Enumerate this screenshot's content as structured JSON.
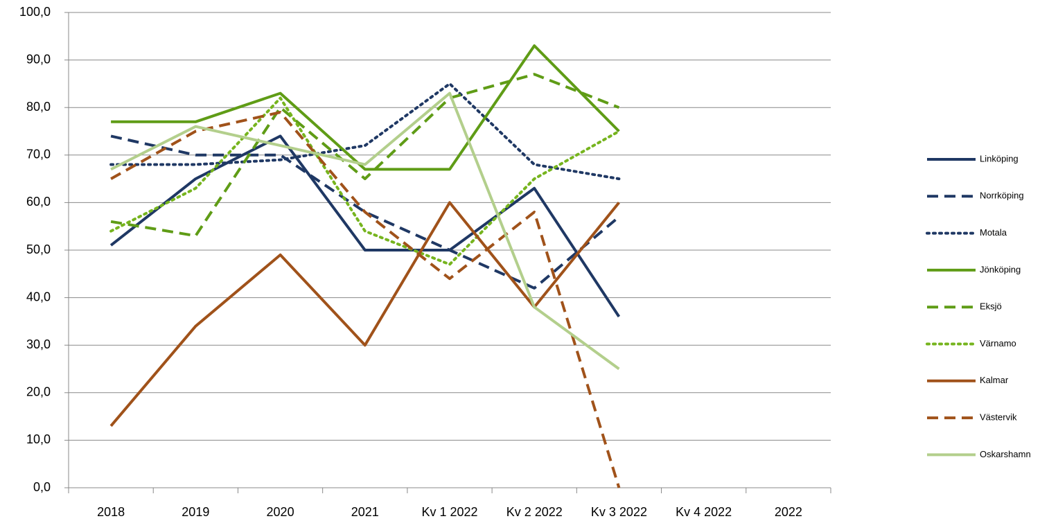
{
  "chart_data": {
    "type": "line",
    "categories": [
      "2018",
      "2019",
      "2020",
      "2021",
      "Kv 1 2022",
      "Kv 2 2022",
      "Kv 3 2022",
      "Kv 4 2022",
      "2022"
    ],
    "series": [
      {
        "name": "Linköping",
        "color": "#1f3864",
        "dash": "solid",
        "values": [
          51,
          65,
          74,
          50,
          50,
          63,
          36,
          null,
          null
        ]
      },
      {
        "name": "Norrköping",
        "color": "#1f3864",
        "dash": "dash",
        "values": [
          74,
          70,
          70,
          58,
          50,
          42,
          57,
          null,
          null
        ]
      },
      {
        "name": "Motala",
        "color": "#1f3864",
        "dash": "dot",
        "values": [
          68,
          68,
          69,
          72,
          85,
          68,
          65,
          null,
          null
        ]
      },
      {
        "name": "Jönköping",
        "color": "#5f9c16",
        "dash": "solid",
        "values": [
          77,
          77,
          83,
          67,
          67,
          93,
          75,
          null,
          null
        ]
      },
      {
        "name": "Eksjö",
        "color": "#5f9c16",
        "dash": "dash",
        "values": [
          56,
          53,
          80,
          65,
          82,
          87,
          80,
          null,
          null
        ]
      },
      {
        "name": "Värnamo",
        "color": "#76b41e",
        "dash": "dot",
        "values": [
          54,
          63,
          82,
          54,
          47,
          65,
          75,
          null,
          null
        ]
      },
      {
        "name": "Kalmar",
        "color": "#a0521a",
        "dash": "solid",
        "values": [
          13,
          34,
          49,
          30,
          60,
          38,
          60,
          null,
          null
        ]
      },
      {
        "name": "Västervik",
        "color": "#a0521a",
        "dash": "dash",
        "values": [
          65,
          75,
          79,
          58,
          44,
          58,
          0,
          null,
          null
        ]
      },
      {
        "name": "Oskarshamn",
        "color": "#b3cf8c",
        "dash": "solid",
        "values": [
          67,
          76,
          72,
          68,
          83,
          38,
          25,
          null,
          null
        ]
      }
    ],
    "ylim": [
      0,
      100
    ],
    "yticks": [
      {
        "value": 0,
        "label": "0,0"
      },
      {
        "value": 10,
        "label": "10,0"
      },
      {
        "value": 20,
        "label": "20,0"
      },
      {
        "value": 30,
        "label": "30,0"
      },
      {
        "value": 40,
        "label": "40,0"
      },
      {
        "value": 50,
        "label": "50,0"
      },
      {
        "value": 60,
        "label": "60,0"
      },
      {
        "value": 70,
        "label": "70,0"
      },
      {
        "value": 80,
        "label": "80,0"
      },
      {
        "value": 90,
        "label": "90,0"
      },
      {
        "value": 100,
        "label": "100,0"
      }
    ],
    "grid": true,
    "legend": "right"
  }
}
